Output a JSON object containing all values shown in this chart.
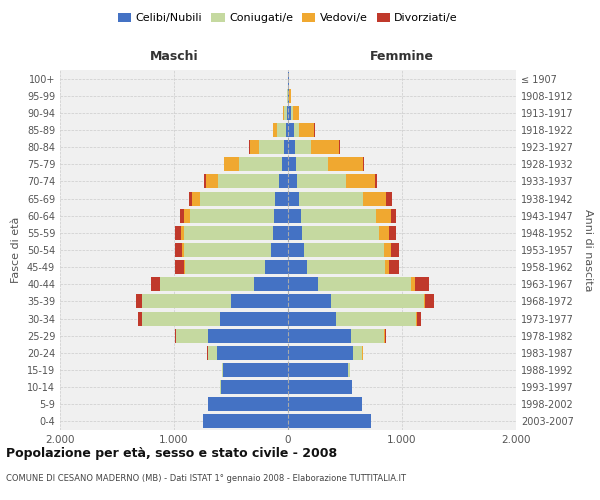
{
  "age_groups": [
    "0-4",
    "5-9",
    "10-14",
    "15-19",
    "20-24",
    "25-29",
    "30-34",
    "35-39",
    "40-44",
    "45-49",
    "50-54",
    "55-59",
    "60-64",
    "65-69",
    "70-74",
    "75-79",
    "80-84",
    "85-89",
    "90-94",
    "95-99",
    "100+"
  ],
  "birth_years": [
    "2003-2007",
    "1998-2002",
    "1993-1997",
    "1988-1992",
    "1983-1987",
    "1978-1982",
    "1973-1977",
    "1968-1972",
    "1963-1967",
    "1958-1962",
    "1953-1957",
    "1948-1952",
    "1943-1947",
    "1938-1942",
    "1933-1937",
    "1928-1932",
    "1923-1927",
    "1918-1922",
    "1913-1917",
    "1908-1912",
    "≤ 1907"
  ],
  "male_celibe": [
    750,
    700,
    590,
    570,
    620,
    700,
    600,
    500,
    300,
    200,
    150,
    130,
    120,
    110,
    80,
    50,
    35,
    20,
    10,
    3,
    2
  ],
  "male_coniug": [
    0,
    0,
    5,
    10,
    80,
    280,
    680,
    780,
    820,
    700,
    760,
    780,
    740,
    660,
    530,
    380,
    220,
    80,
    25,
    5,
    0
  ],
  "male_vedov": [
    0,
    0,
    0,
    0,
    5,
    5,
    5,
    5,
    5,
    10,
    20,
    30,
    50,
    70,
    110,
    130,
    80,
    30,
    10,
    2,
    0
  ],
  "male_divor": [
    0,
    0,
    0,
    0,
    5,
    10,
    30,
    50,
    80,
    80,
    60,
    50,
    40,
    30,
    15,
    5,
    5,
    5,
    0,
    0,
    0
  ],
  "female_celibe": [
    730,
    650,
    560,
    530,
    570,
    550,
    420,
    380,
    260,
    170,
    140,
    120,
    110,
    100,
    80,
    70,
    60,
    50,
    30,
    8,
    5
  ],
  "female_coniug": [
    0,
    0,
    5,
    15,
    80,
    290,
    700,
    810,
    820,
    680,
    700,
    680,
    660,
    560,
    430,
    280,
    140,
    50,
    10,
    3,
    0
  ],
  "female_vedov": [
    0,
    0,
    0,
    0,
    5,
    10,
    10,
    15,
    30,
    40,
    60,
    90,
    130,
    200,
    250,
    310,
    250,
    130,
    60,
    15,
    5
  ],
  "female_divor": [
    0,
    0,
    0,
    0,
    5,
    10,
    40,
    80,
    130,
    80,
    70,
    60,
    50,
    50,
    20,
    10,
    10,
    5,
    0,
    0,
    0
  ],
  "colors": {
    "celibe": "#4472C4",
    "coniug": "#C5D9A0",
    "vedov": "#F0A830",
    "divor": "#C0392B"
  },
  "title": "Popolazione per età, sesso e stato civile - 2008",
  "subtitle": "COMUNE DI CESANO MADERNO (MB) - Dati ISTAT 1° gennaio 2008 - Elaborazione TUTTITALIA.IT",
  "xlabel_left": "Maschi",
  "xlabel_right": "Femmine",
  "ylabel_left": "Fasce di età",
  "ylabel_right": "Anni di nascita",
  "xlim": 2000,
  "bg_color": "#ffffff",
  "grid_color": "#cccccc"
}
